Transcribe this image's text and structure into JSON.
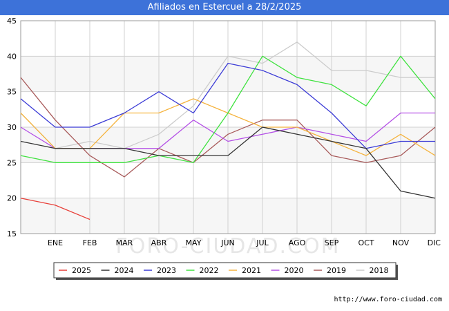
{
  "header": {
    "title": "Afiliados en Estercuel a 28/2/2025"
  },
  "footer": {
    "url": "http://www.foro-ciudad.com"
  },
  "watermark": "FORO-CIUDAD.COM",
  "chart_data": {
    "type": "line",
    "title": "Afiliados en Estercuel a 28/2/2025",
    "categories": [
      "",
      "ENE",
      "FEB",
      "MAR",
      "ABR",
      "MAY",
      "JUN",
      "JUL",
      "AGO",
      "SEP",
      "OCT",
      "NOV",
      "DIC"
    ],
    "ylim": [
      15,
      45
    ],
    "yticks": [
      15,
      20,
      25,
      30,
      35,
      40,
      45
    ],
    "grid": true,
    "legend_position": "bottom",
    "series": [
      {
        "name": "2025",
        "color": "#e8403a",
        "values": [
          20,
          19,
          17,
          null,
          null,
          null,
          null,
          null,
          null,
          null,
          null,
          null,
          null
        ]
      },
      {
        "name": "2024",
        "color": "#333333",
        "values": [
          28,
          27,
          27,
          27,
          26,
          26,
          26,
          30,
          29,
          28,
          27,
          21,
          20
        ]
      },
      {
        "name": "2023",
        "color": "#3b3bd6",
        "values": [
          34,
          30,
          30,
          32,
          35,
          32,
          39,
          38,
          36,
          32,
          27,
          28,
          28
        ]
      },
      {
        "name": "2022",
        "color": "#3fe23f",
        "values": [
          26,
          25,
          25,
          25,
          26,
          25,
          32,
          40,
          37,
          36,
          33,
          40,
          34
        ]
      },
      {
        "name": "2021",
        "color": "#f5b43f",
        "values": [
          32,
          27,
          27,
          32,
          32,
          34,
          32,
          30,
          30,
          28,
          26,
          29,
          26
        ]
      },
      {
        "name": "2020",
        "color": "#b450e6",
        "values": [
          30,
          27,
          27,
          27,
          27,
          31,
          28,
          29,
          30,
          29,
          28,
          32,
          32
        ]
      },
      {
        "name": "2019",
        "color": "#a85a5a",
        "values": [
          37,
          31,
          26,
          23,
          27,
          25,
          29,
          31,
          31,
          26,
          25,
          26,
          30
        ]
      },
      {
        "name": "2018",
        "color": "#cccccc",
        "values": [
          32,
          27,
          28,
          27,
          29,
          33,
          40,
          39,
          42,
          38,
          38,
          37,
          37
        ]
      }
    ]
  }
}
